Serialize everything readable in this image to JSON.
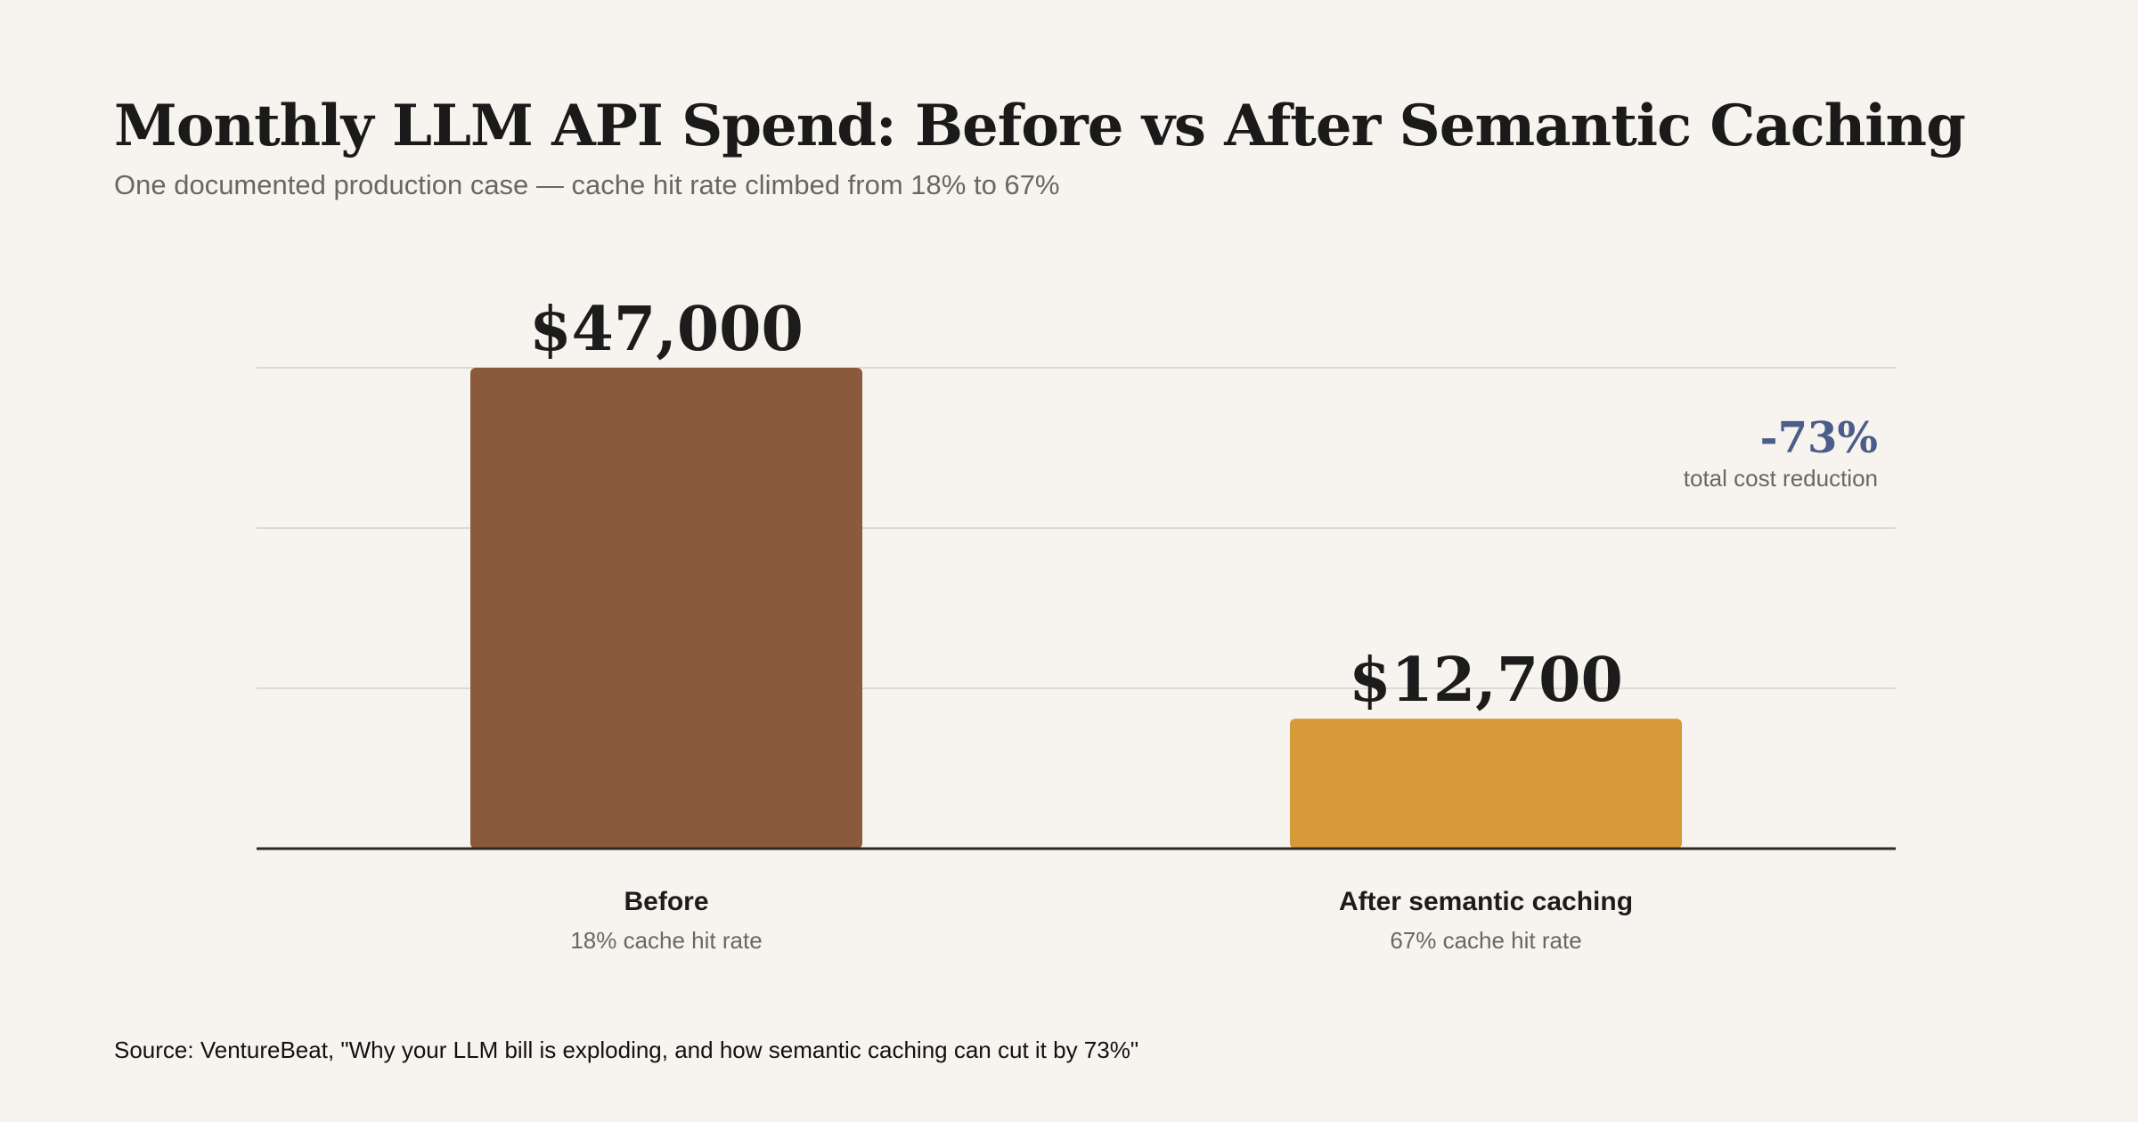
{
  "chart_data": {
    "type": "bar",
    "title": "Monthly LLM API Spend: Before vs After Semantic Caching",
    "subtitle": "One documented production case — cache hit rate climbed from 18% to 67%",
    "categories": [
      "Before",
      "After semantic caching"
    ],
    "category_sublabels": [
      "18% cache hit rate",
      "67% cache hit rate"
    ],
    "values": [
      47000,
      12700
    ],
    "value_labels": [
      "$47,000",
      "$12,700"
    ],
    "colors": [
      "#8b5a3c",
      "#d69a3a"
    ],
    "ylim": [
      0,
      47000
    ],
    "grid": true,
    "annotation": {
      "value": "-73%",
      "label": "total cost reduction",
      "color": "#4b5d8a"
    },
    "source": "Source: VentureBeat, \"Why your LLM bill is exploding, and how semantic caching can cut it by 73%\""
  }
}
